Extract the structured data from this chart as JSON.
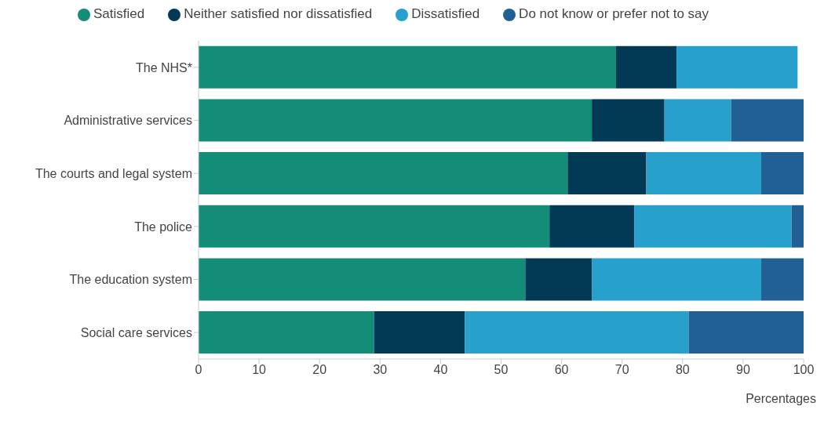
{
  "chart_data": {
    "type": "bar",
    "orientation": "horizontal",
    "stacked": true,
    "categories": [
      "The NHS*",
      "Administrative services",
      "The courts and legal system",
      "The police",
      "The education system",
      "Social care services"
    ],
    "series": [
      {
        "name": "Satisfied",
        "color": "#138d77",
        "values": [
          69,
          65,
          61,
          58,
          54,
          29
        ]
      },
      {
        "name": "Neither satisfied nor dissatisfied",
        "color": "#023a55",
        "values": [
          10,
          12,
          13,
          14,
          11,
          15
        ]
      },
      {
        "name": "Dissatisfied",
        "color": "#27a0cc",
        "values": [
          20,
          11,
          19,
          26,
          28,
          37
        ]
      },
      {
        "name": "Do not know or prefer not to say",
        "color": "#206095",
        "values": [
          null,
          12,
          7,
          2,
          7,
          19
        ]
      }
    ],
    "xlabel": "Percentages",
    "xlim": [
      0,
      100
    ],
    "xticks": [
      0,
      10,
      20,
      30,
      40,
      50,
      60,
      70,
      80,
      90,
      100
    ],
    "grid": false,
    "legend": "top"
  }
}
